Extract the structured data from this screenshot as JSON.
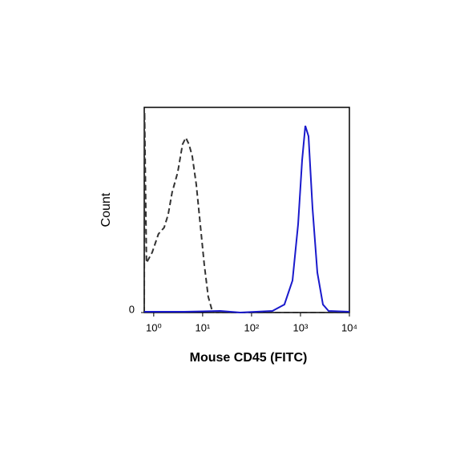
{
  "chart_data": {
    "type": "line",
    "x_label": "Mouse CD45 (FITC)",
    "y_label": "Count",
    "xscale": "log",
    "xlim": [
      0.64,
      10000
    ],
    "ylim": [
      0,
      100
    ],
    "xticks": [
      {
        "value": 1,
        "label": "10⁰"
      },
      {
        "value": 10,
        "label": "10¹"
      },
      {
        "value": 100,
        "label": "10²"
      },
      {
        "value": 1000,
        "label": "10³"
      },
      {
        "value": 10000,
        "label": "10⁴"
      }
    ],
    "yticks": [
      0
    ],
    "series": [
      {
        "color": "#333333",
        "line_style": "dashed",
        "x": [
          0.64,
          0.65,
          0.71,
          0.93,
          1.25,
          1.63,
          1.97,
          2.38,
          3.1,
          3.89,
          4.53,
          5.26,
          6.12,
          7.39,
          8.93,
          10.8,
          13,
          15.7,
          19,
          10000
        ],
        "values": [
          0,
          97.7,
          24.2,
          29.3,
          38.3,
          41.4,
          47.7,
          58.6,
          68.4,
          82,
          85.2,
          82,
          76.2,
          62.5,
          43,
          23.4,
          7.8,
          0.8,
          0,
          0
        ]
      },
      {
        "color": "#1a1acc",
        "line_style": "solid",
        "x": [
          0.64,
          4.2,
          22.9,
          58.8,
          267,
          470,
          686,
          893,
          1079,
          1254,
          1459,
          1762,
          2208,
          2877,
          3750,
          10000
        ],
        "values": [
          0.4,
          0.4,
          0.8,
          0,
          0.8,
          3.9,
          15.6,
          43,
          74.2,
          91,
          85.9,
          50.8,
          19.5,
          3.9,
          0.8,
          0.4
        ]
      }
    ]
  }
}
